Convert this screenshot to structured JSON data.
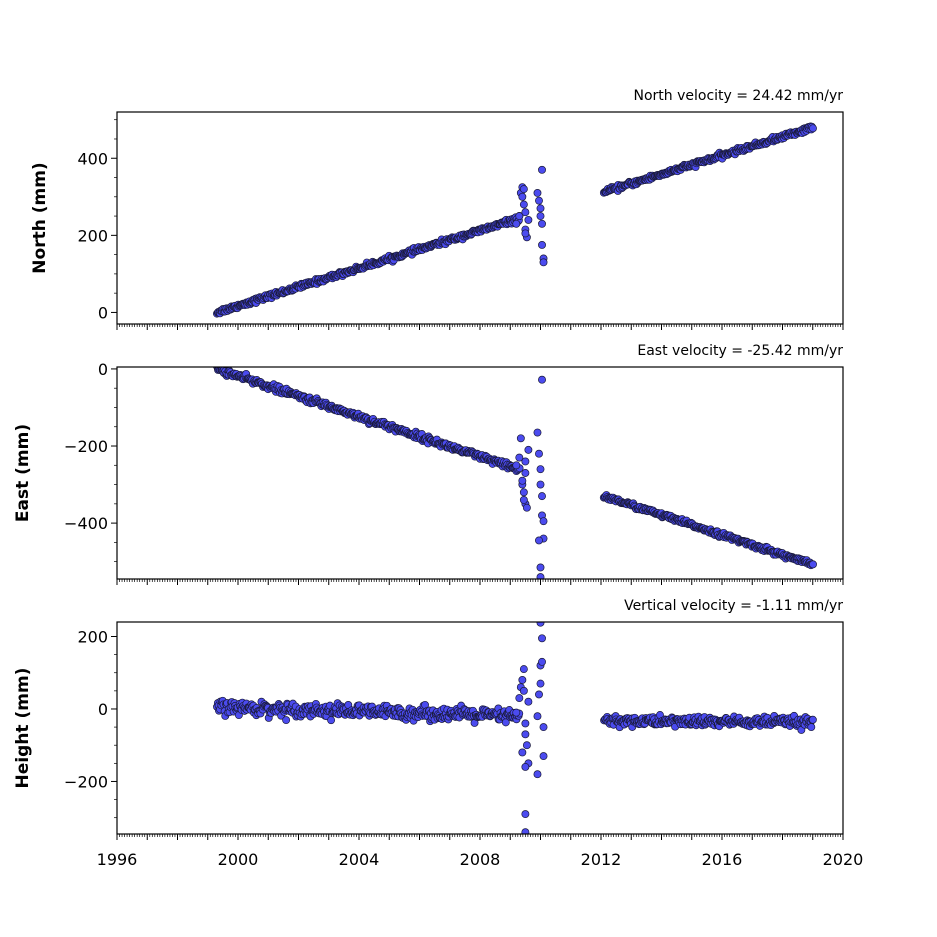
{
  "chart_data": [
    {
      "type": "scatter",
      "title": "North velocity = 24.42 mm/yr",
      "xlabel": "",
      "ylabel": "North (mm)",
      "xlim": [
        1996,
        2020
      ],
      "ylim": [
        -30,
        520
      ],
      "yticks": [
        0,
        200,
        400
      ],
      "ytick_labels": [
        "0",
        "200",
        "400"
      ],
      "grid": false,
      "marker_color": "#4b4bef",
      "edge_color": "#1a1a3a",
      "segments": [
        {
          "x_start": 1999.3,
          "x_end": 2009.3,
          "y_start": 0,
          "y_end": 244,
          "noise": 3
        },
        {
          "x_start": 2012.1,
          "x_end": 2019.0,
          "y_start": 312,
          "y_end": 480,
          "noise": 3
        }
      ],
      "scatter_cluster": {
        "x": [
          2009.2,
          2009.3,
          2009.35,
          2009.4,
          2009.45,
          2009.5,
          2009.5,
          2009.55,
          2009.6,
          2009.9,
          2009.95,
          2010.0,
          2010.0,
          2010.05,
          2010.05,
          2010.1,
          2010.1,
          2009.4,
          2009.45,
          2009.5
        ],
        "y": [
          230,
          250,
          310,
          325,
          280,
          260,
          215,
          195,
          240,
          310,
          290,
          270,
          250,
          230,
          175,
          140,
          130,
          300,
          320,
          205
        ]
      },
      "outliers": {
        "x": [
          2010.05
        ],
        "y": [
          370
        ]
      }
    },
    {
      "type": "scatter",
      "title": "East velocity = -25.42 mm/yr",
      "xlabel": "",
      "ylabel": "East (mm)",
      "xlim": [
        1996,
        2020
      ],
      "ylim": [
        -545,
        5
      ],
      "yticks": [
        0,
        -200,
        -400
      ],
      "ytick_labels": [
        "0",
        "−200",
        "−400"
      ],
      "grid": false,
      "marker_color": "#4b4bef",
      "edge_color": "#1a1a3a",
      "segments": [
        {
          "x_start": 1999.3,
          "x_end": 2009.3,
          "y_start": 0,
          "y_end": -262,
          "noise": 4
        },
        {
          "x_start": 2012.1,
          "x_end": 2019.0,
          "y_start": -330,
          "y_end": -508,
          "noise": 3
        }
      ],
      "scatter_cluster": {
        "x": [
          2009.2,
          2009.3,
          2009.35,
          2009.4,
          2009.45,
          2009.5,
          2009.5,
          2009.55,
          2009.6,
          2009.9,
          2009.95,
          2010.0,
          2010.0,
          2010.05,
          2010.05,
          2010.1,
          2010.1,
          2009.4,
          2009.45,
          2009.5,
          2009.95,
          2010.0
        ],
        "y": [
          -250,
          -230,
          -180,
          -300,
          -320,
          -270,
          -350,
          -360,
          -210,
          -165,
          -220,
          -260,
          -300,
          -330,
          -380,
          -395,
          -440,
          -290,
          -340,
          -240,
          -445,
          -515
        ]
      },
      "outliers": {
        "x": [
          2010.05,
          2010.0
        ],
        "y": [
          -28,
          -540
        ]
      }
    },
    {
      "type": "scatter",
      "title": "Vertical velocity = -1.11 mm/yr",
      "xlabel": "",
      "ylabel": "Height (mm)",
      "xlim": [
        1996,
        2020
      ],
      "xticks": [
        1996,
        2000,
        2004,
        2008,
        2012,
        2016,
        2020
      ],
      "xtick_labels": [
        "1996",
        "2000",
        "2004",
        "2008",
        "2012",
        "2016",
        "2020"
      ],
      "ylim": [
        -345,
        240
      ],
      "yticks": [
        200,
        0,
        -200
      ],
      "ytick_labels": [
        "200",
        "0",
        "−200"
      ],
      "grid": false,
      "marker_color": "#4b4bef",
      "edge_color": "#1a1a3a",
      "segments": [
        {
          "x_start": 1999.3,
          "x_end": 2009.3,
          "y_start": 5,
          "y_end": -20,
          "noise": 9
        },
        {
          "x_start": 2012.1,
          "x_end": 2019.0,
          "y_start": -33,
          "y_end": -37,
          "noise": 7
        }
      ],
      "scatter_cluster": {
        "x": [
          2009.2,
          2009.3,
          2009.35,
          2009.4,
          2009.45,
          2009.5,
          2009.5,
          2009.55,
          2009.6,
          2009.6,
          2009.9,
          2009.95,
          2010.0,
          2010.0,
          2010.05,
          2010.05,
          2010.1,
          2010.1,
          2009.4,
          2009.45,
          2009.5,
          2009.5,
          2009.9
        ],
        "y": [
          -10,
          30,
          60,
          80,
          50,
          -40,
          -70,
          -100,
          -150,
          20,
          -20,
          40,
          70,
          120,
          195,
          130,
          -50,
          -130,
          -120,
          110,
          -160,
          -290,
          -180
        ]
      },
      "outliers": {
        "x": [
          2010.0,
          2009.5
        ],
        "y": [
          238,
          -340
        ]
      }
    }
  ]
}
